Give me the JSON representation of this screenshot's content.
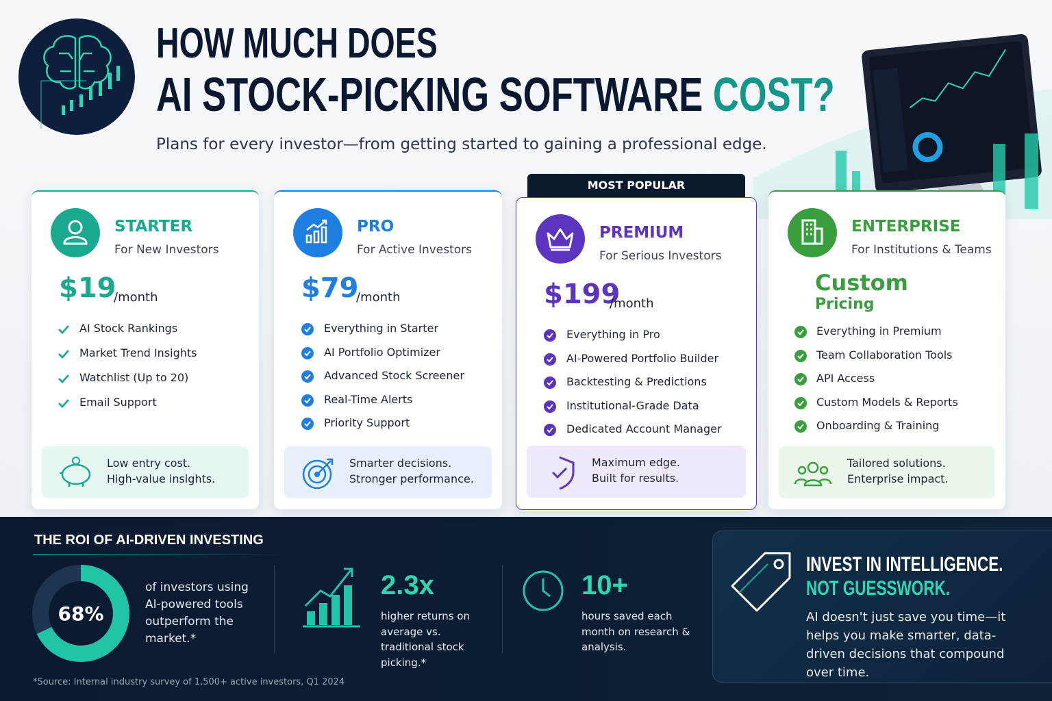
{
  "header": {
    "title_line1": "HOW MUCH DOES",
    "title_line2": "AI STOCK-PICKING SOFTWARE",
    "title_highlight": "COST?",
    "subtitle": "Plans for every investor—from getting started to gaining a professional edge."
  },
  "plans": [
    {
      "name": "STARTER",
      "tagline": "For New Investors",
      "price": "$19",
      "period": "/month",
      "color": "#1aa98f",
      "features": [
        "AI Stock Rankings",
        "Market Trend Insights",
        "Watchlist (Up to 20)",
        "Email Support"
      ],
      "benefit": [
        "Low entry cost.",
        "High-value insights."
      ]
    },
    {
      "name": "PRO",
      "tagline": "For Active Investors",
      "price": "$79",
      "period": "/month",
      "color": "#1f7fe0",
      "features": [
        "Everything in Starter",
        "AI Portfolio Optimizer",
        "Advanced Stock Screener",
        "Real-Time Alerts",
        "Priority Support"
      ],
      "benefit": [
        "Smarter decisions.",
        "Stronger performance."
      ]
    },
    {
      "name": "PREMIUM",
      "tagline": "For Serious Investors",
      "price": "$199",
      "period": "/month",
      "color": "#5b34c0",
      "badge": "MOST POPULAR",
      "features": [
        "Everything in Pro",
        "AI-Powered Portfolio Builder",
        "Backtesting & Predictions",
        "Institutional-Grade Data",
        "Dedicated Account Manager"
      ],
      "benefit": [
        "Maximum edge.",
        "Built for results."
      ]
    },
    {
      "name": "ENTERPRISE",
      "tagline": "For Institutions & Teams",
      "price": "Custom",
      "period": "Pricing",
      "color": "#3a9e3f",
      "features": [
        "Everything in Premium",
        "Team Collaboration Tools",
        "API Access",
        "Custom Models & Reports",
        "Onboarding & Training"
      ],
      "benefit": [
        "Tailored solutions.",
        "Enterprise impact."
      ]
    }
  ],
  "roi": {
    "title": "THE ROI OF AI-DRIVEN INVESTING",
    "percent": 68,
    "percent_label": "68%",
    "percent_text": "of investors using AI-powered tools outperform the market.*",
    "stats": [
      {
        "value": "2.3x",
        "text": "higher returns on average vs. traditional stock picking.*"
      },
      {
        "value": "10+",
        "text": "hours saved each month on research & analysis."
      }
    ],
    "source": "*Source: Internal industry survey of 1,500+ active investors, Q1 2024"
  },
  "callout": {
    "line1": "INVEST IN INTELLIGENCE.",
    "line2": "NOT GUESSWORK.",
    "body": "AI doesn't just save you time—it helps you make smarter, data-driven decisions that compound over time."
  }
}
